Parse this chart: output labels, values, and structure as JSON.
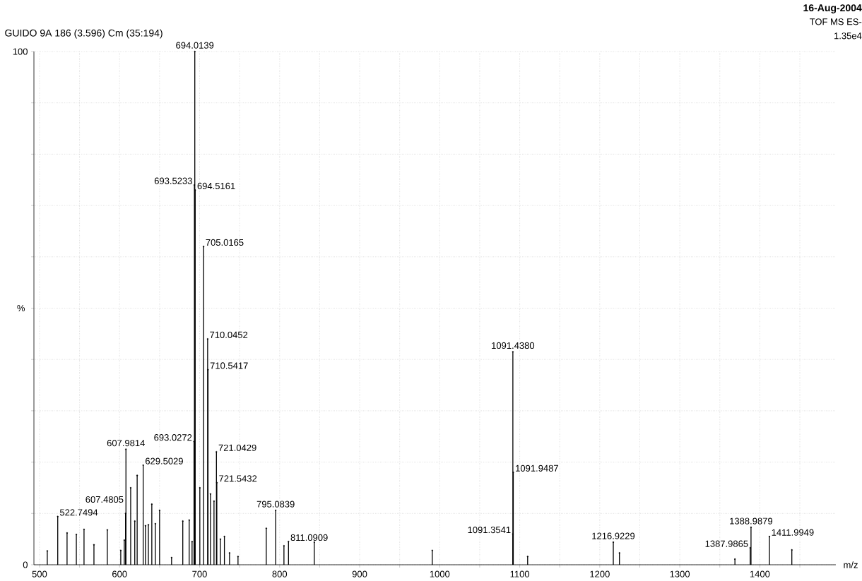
{
  "chart_data": {
    "type": "lollipop",
    "marker": "circle",
    "title": "GUIDO 9A 186 (3.596) Cm (35:194)",
    "xlabel": "m/z",
    "ylabel": "%",
    "x": [
      509.7,
      522.7494,
      534.4,
      546,
      555.6,
      568,
      584.7,
      601.5,
      605.9,
      607.4805,
      607.9814,
      613.9,
      619,
      622,
      629.5029,
      632.4,
      636,
      640.3,
      644.7,
      650,
      665,
      679,
      687,
      690.6,
      693.0272,
      693.5233,
      694.0139,
      694.5161,
      700.3,
      705.0165,
      710.0452,
      710.5417,
      713.6,
      718,
      721.0429,
      721.5432,
      726,
      731,
      737.4,
      748,
      783.3,
      795.0839,
      805.4,
      811.0909,
      843.3,
      990.7,
      1091.3541,
      1091.438,
      1091.9487,
      1109.9,
      1216.9229,
      1224.6,
      1368.9,
      1387.9865,
      1388.9879,
      1411.9949,
      1440
    ],
    "values": [
      2.7,
      9.4,
      6.2,
      5.9,
      6.9,
      3.9,
      6.8,
      2.8,
      4.8,
      10,
      22.5,
      15,
      8.5,
      17.4,
      19.4,
      7.6,
      7.8,
      11.8,
      8,
      10.6,
      1.4,
      8.5,
      8.7,
      4.5,
      24,
      74,
      100,
      73,
      15,
      62,
      44,
      38,
      13.8,
      12.4,
      22,
      16,
      5,
      5.5,
      2.3,
      1.6,
      7.1,
      10.6,
      3.7,
      4.5,
      4.4,
      2.8,
      6,
      41.5,
      18,
      1.6,
      4.4,
      2.3,
      1.1,
      3.3,
      7.3,
      5.5,
      2.9
    ],
    "color": "#000000",
    "xlim": [
      493,
      1495
    ],
    "xticks": [
      500,
      {
        "value": 550,
        "label": null
      },
      600,
      {
        "value": 650,
        "label": null
      },
      700,
      {
        "value": 750,
        "label": null
      },
      800,
      {
        "value": 850,
        "label": null
      },
      900,
      {
        "value": 950,
        "label": null
      },
      1000,
      {
        "value": 1050,
        "label": null
      },
      1100,
      {
        "value": 1150,
        "label": null
      },
      1200,
      {
        "value": 1250,
        "label": null
      },
      1300,
      {
        "value": 1350,
        "label": null
      },
      1400,
      {
        "value": 1450,
        "label": null
      }
    ],
    "ylim": [
      0,
      100
    ],
    "yticks": [
      0,
      {
        "value": 10,
        "label": null
      },
      {
        "value": 20,
        "label": null
      },
      {
        "value": 30,
        "label": null
      },
      {
        "value": 40,
        "label": null
      },
      {
        "value": 50,
        "label": null
      },
      {
        "value": 60,
        "label": null
      },
      {
        "value": 70,
        "label": null
      },
      {
        "value": 80,
        "label": null
      },
      {
        "value": 90,
        "label": null
      },
      100
    ],
    "grid": true,
    "annotations": [
      "16-Aug-2004",
      "TOF MS ES-",
      "1.35e4",
      {
        "text": "522.7494",
        "x": 522.7494,
        "y": 9.4
      },
      {
        "text": "607.4805",
        "x": 607.4805,
        "y": 10
      },
      {
        "text": "607.9814",
        "x": 607.9814,
        "y": 22.5
      },
      {
        "text": "629.5029",
        "x": 629.5029,
        "y": 19.4
      },
      {
        "text": "693.0272",
        "x": 693.0272,
        "y": 24
      },
      {
        "text": "693.5233",
        "x": 693.5233,
        "y": 74
      },
      {
        "text": "694.0139",
        "x": 694.0139,
        "y": 100
      },
      {
        "text": "694.5161",
        "x": 694.5161,
        "y": 73
      },
      {
        "text": "705.0165",
        "x": 705.0165,
        "y": 62
      },
      {
        "text": "710.0452",
        "x": 710.0452,
        "y": 44
      },
      {
        "text": "710.5417",
        "x": 710.5417,
        "y": 38
      },
      {
        "text": "721.0429",
        "x": 721.0429,
        "y": 22
      },
      {
        "text": "721.5432",
        "x": 721.5432,
        "y": 16
      },
      {
        "text": "795.0839",
        "x": 795.0839,
        "y": 10.6
      },
      {
        "text": "811.0909",
        "x": 811.0909,
        "y": 4.5
      },
      {
        "text": "1091.3541",
        "x": 1091.3541,
        "y": 6
      },
      {
        "text": "1091.4380",
        "x": 1091.438,
        "y": 41.5
      },
      {
        "text": "1091.9487",
        "x": 1091.9487,
        "y": 18
      },
      {
        "text": "1216.9229",
        "x": 1216.9229,
        "y": 4.4
      },
      {
        "text": "1387.9865",
        "x": 1387.9865,
        "y": 3.3
      },
      {
        "text": "1388.9879",
        "x": 1388.9879,
        "y": 7.3
      },
      {
        "text": "1411.9949",
        "x": 1411.9949,
        "y": 5.5
      }
    ]
  }
}
